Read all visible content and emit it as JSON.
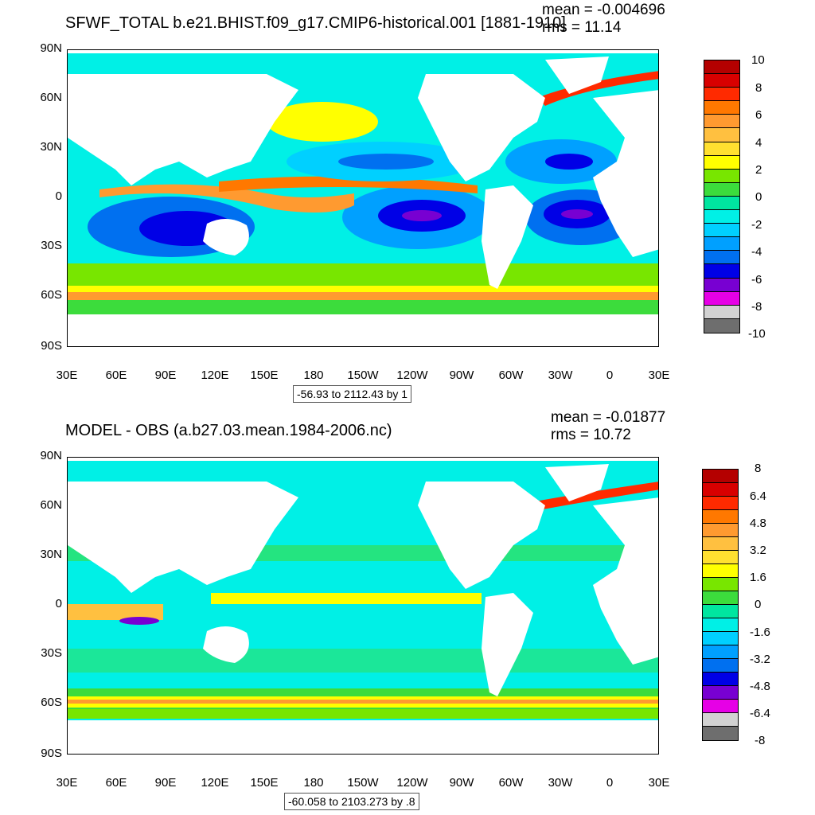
{
  "panels": [
    {
      "title": "SFWF_TOTAL b.e21.BHIST.f09_g17.CMIP6-historical.001 [1881-1910]",
      "mean": "mean = -0.004696",
      "rms": "rms = 11.14",
      "range_note": "-56.93 to 2112.43 by 1",
      "y_ticks": [
        "90N",
        "60N",
        "30N",
        "0",
        "30S",
        "60S",
        "90S"
      ],
      "x_ticks": [
        "30E",
        "60E",
        "90E",
        "120E",
        "150E",
        "180",
        "150W",
        "120W",
        "90W",
        "60W",
        "30W",
        "0",
        "30E"
      ],
      "colorbar_labels": [
        "10",
        "8",
        "6",
        "4",
        "2",
        "0",
        "-2",
        "-4",
        "-6",
        "-8",
        "-10"
      ],
      "colorbar_colors": [
        "#b40000",
        "#d80000",
        "#ff2a00",
        "#ff7800",
        "#ff9a30",
        "#ffc040",
        "#ffe030",
        "#ffff00",
        "#78e600",
        "#3cdc3c",
        "#00e6a0",
        "#00f0e6",
        "#00d0ff",
        "#00a0ff",
        "#0070f0",
        "#0000e6",
        "#7800d2",
        "#e600e6",
        "#d2d2d2",
        "#6e6e6e"
      ]
    },
    {
      "title": "MODEL - OBS (a.b27.03.mean.1984-2006.nc)",
      "mean": "mean = -0.01877",
      "rms": "rms = 10.72",
      "range_note": "-60.058 to 2103.273 by .8",
      "y_ticks": [
        "90N",
        "60N",
        "30N",
        "0",
        "30S",
        "60S",
        "90S"
      ],
      "x_ticks": [
        "30E",
        "60E",
        "90E",
        "120E",
        "150E",
        "180",
        "150W",
        "120W",
        "90W",
        "60W",
        "30W",
        "0",
        "30E"
      ],
      "colorbar_labels": [
        "8",
        "6.4",
        "4.8",
        "3.2",
        "1.6",
        "0",
        "-1.6",
        "-3.2",
        "-4.8",
        "-6.4",
        "-8"
      ],
      "colorbar_colors": [
        "#b40000",
        "#d80000",
        "#ff2a00",
        "#ff7800",
        "#ff9a30",
        "#ffc040",
        "#ffe030",
        "#ffff00",
        "#78e600",
        "#3cdc3c",
        "#00e6a0",
        "#00f0e6",
        "#00d0ff",
        "#00a0ff",
        "#0070f0",
        "#0000e6",
        "#7800d2",
        "#e600e6",
        "#d2d2d2",
        "#6e6e6e"
      ]
    }
  ],
  "colors": {
    "ocean_base_top": "#00f0e6",
    "ocean_base_bottom": "#00f0e6",
    "land": "#ffffff"
  }
}
